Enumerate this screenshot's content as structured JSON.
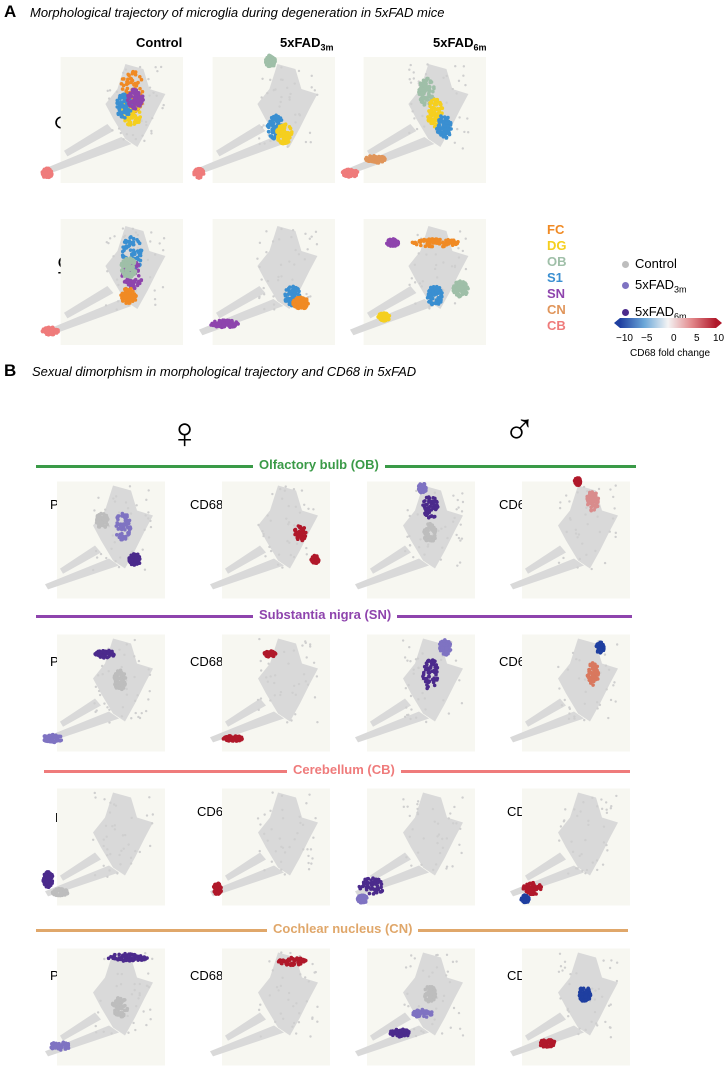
{
  "panel_a": {
    "letter": "A",
    "title": "Morphological trajectory of microglia during degeneration in 5xFAD mice",
    "col_control": "Control",
    "col_3m_base": "5xFAD",
    "col_3m_sub": "3m",
    "col_6m_base": "5xFAD",
    "col_6m_sub": "6m",
    "male_symbol": "♂",
    "female_symbol": "♀",
    "regions": [
      {
        "label": "FC",
        "color": "#f08a24"
      },
      {
        "label": "DG",
        "color": "#f5cf1f"
      },
      {
        "label": "OB",
        "color": "#9fbfa8"
      },
      {
        "label": "S1",
        "color": "#3a8fd1"
      },
      {
        "label": "SN",
        "color": "#8e44ad"
      },
      {
        "label": "CN",
        "color": "#e0955a"
      },
      {
        "label": "CB",
        "color": "#ef7b7b"
      }
    ],
    "conditions": [
      {
        "label": "Control",
        "sub": "",
        "color": "#bdbdbd"
      },
      {
        "label": "5xFAD",
        "sub": "3m",
        "color": "#7f73c2"
      },
      {
        "label": "5xFAD",
        "sub": "6m",
        "color": "#4b2a8c"
      }
    ],
    "colorbar": {
      "ticks": [
        "−10",
        "−5",
        "0",
        "5",
        "10"
      ],
      "title": "CD68 fold change",
      "low_color": "#1f3fa0",
      "mid_color": "#f4f4f4",
      "high_color": "#b0182a"
    }
  },
  "panel_b": {
    "letter": "B",
    "title": "Sexual dimorphism in morphological trajectory and CD68 in 5xFAD",
    "female_symbol": "♀",
    "male_symbol": "♂",
    "palantir": "Palantir",
    "cd68": "CD68",
    "sections": [
      {
        "label": "Olfactory bulb (OB)",
        "color": "#3a9a47"
      },
      {
        "label": "Substantia nigra (SN)",
        "color": "#8e44ad"
      },
      {
        "label": "Cerebellum (CB)",
        "color": "#ef7b7b"
      },
      {
        "label": "Cochlear nucleus (CN)",
        "color": "#e0a76a"
      }
    ]
  }
}
